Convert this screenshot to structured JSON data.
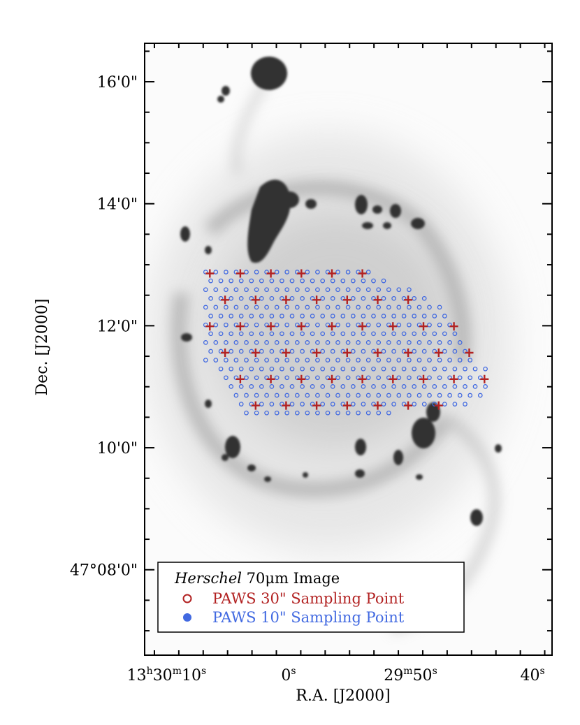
{
  "chart_data": {
    "type": "scatter",
    "background_image": "Herschel 70um galaxy image (inverted grayscale)",
    "xlabel": "R.A. [J2000]",
    "ylabel": "Dec. [J2000]",
    "x_ticks": [
      {
        "label_parts": [
          "13",
          "h",
          "30",
          "m",
          "10",
          "s"
        ],
        "value_s": 10
      },
      {
        "label_parts": [
          "0",
          "s"
        ],
        "value_s": 0
      },
      {
        "label_parts": [
          "29",
          "m",
          "50",
          "s"
        ],
        "value_s": -10
      },
      {
        "label_parts": [
          "40",
          "s"
        ],
        "value_s": -20
      }
    ],
    "y_ticks": [
      {
        "label": "16'0\"",
        "value_arcmin": 16
      },
      {
        "label": "14'0\"",
        "value_arcmin": 14
      },
      {
        "label": "12'0\"",
        "value_arcmin": 12
      },
      {
        "label": "10'0\"",
        "value_arcmin": 10
      },
      {
        "label": "47°08'0\"",
        "value_arcmin": 8
      }
    ],
    "xlim_s": [
      11.8,
      -21.6
    ],
    "ylim_arcmin": [
      6.6,
      16.63
    ],
    "series": [
      {
        "name": "PAWS 30\" Sampling Point",
        "marker": "plus",
        "color": "#b22222",
        "spacing_arcsec": 30
      },
      {
        "name": "PAWS 10\" Sampling Point",
        "marker": "filled-circle",
        "color": "#4169e1",
        "spacing_arcsec": 10
      }
    ],
    "sampling_region_vertices": [
      {
        "x_s": 6.8,
        "y_arcmin": 12.88
      },
      {
        "x_s": -7.0,
        "y_arcmin": 12.88
      },
      {
        "x_s": -12.5,
        "y_arcmin": 12.35
      },
      {
        "x_s": -16.3,
        "y_arcmin": 11.25
      },
      {
        "x_s": -16.3,
        "y_arcmin": 10.75
      },
      {
        "x_s": -2.0,
        "y_arcmin": 10.43
      },
      {
        "x_s": 3.0,
        "y_arcmin": 10.43
      },
      {
        "x_s": 6.8,
        "y_arcmin": 11.4
      }
    ],
    "legend": {
      "title_italic": "Herschel",
      "title_rest": " 70μm Image",
      "entries": [
        {
          "label": "PAWS 30\" Sampling Point",
          "color": "#b22222"
        },
        {
          "label": "PAWS 10\" Sampling Point",
          "color": "#4169e1"
        }
      ],
      "position": "bottom-left"
    },
    "colors": {
      "red": "#b22222",
      "blue": "#4169e1",
      "galaxy": "#333333"
    }
  }
}
